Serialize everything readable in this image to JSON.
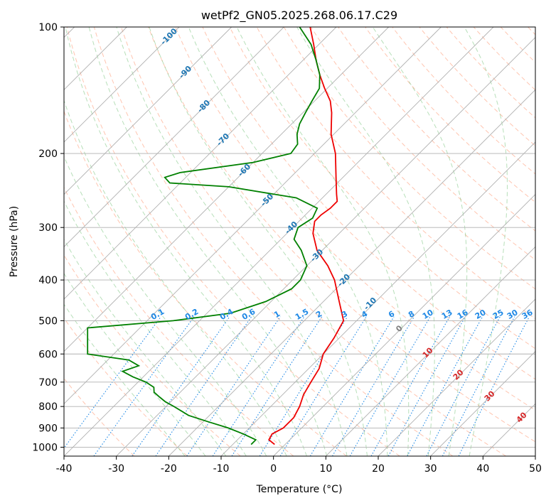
{
  "chart_data": {
    "type": "skew-t",
    "title": "wetPf2_GN05.2025.268.06.17.C29",
    "xlabel": "Temperature (°C)",
    "ylabel": "Pressure (hPa)",
    "xlim": [
      -40,
      50
    ],
    "ylim": [
      1050,
      100
    ],
    "y_scale": "log",
    "x_ticks": [
      -40,
      -30,
      -20,
      -10,
      0,
      10,
      20,
      30,
      40,
      50
    ],
    "y_ticks": [
      100,
      200,
      300,
      400,
      500,
      600,
      700,
      800,
      900,
      1000
    ],
    "grid": true,
    "isotherm_labels": [
      -100,
      -90,
      -80,
      -70,
      -60,
      -50,
      -40,
      -30,
      -20,
      -10,
      0,
      10,
      20,
      30,
      40
    ],
    "mixing_ratio_labels": [
      "0.1",
      "0.2",
      "0.4",
      "0.6",
      "1",
      "1.5",
      "2",
      "3",
      "4",
      "6",
      "8",
      "10",
      "13",
      "16",
      "20",
      "25",
      "30",
      "36"
    ],
    "colors": {
      "temperature": "#ee0000",
      "dewpoint": "#008000",
      "isotherm_label": "#1f77b4",
      "isotherm_label_warm": "#d62728",
      "isotherm_label_zero": "#808080",
      "mixing_ratio": "#1e88e5",
      "dry_adiabat": "#ff7f50",
      "moist_adiabat": "#4caf50",
      "grid": "#b0b0b0"
    },
    "series": [
      {
        "points": [
          {
            "p": 985,
            "t": -2.0
          },
          {
            "p": 960,
            "t": -4.0
          },
          {
            "p": 930,
            "t": -4.5
          },
          {
            "p": 900,
            "t": -3.5
          },
          {
            "p": 850,
            "t": -3.5
          },
          {
            "p": 800,
            "t": -4.5
          },
          {
            "p": 750,
            "t": -6.0
          },
          {
            "p": 700,
            "t": -7.0
          },
          {
            "p": 650,
            "t": -8.0
          },
          {
            "p": 600,
            "t": -10.0
          },
          {
            "p": 550,
            "t": -11.0
          },
          {
            "p": 500,
            "t": -12.5
          },
          {
            "p": 450,
            "t": -17.0
          },
          {
            "p": 400,
            "t": -22.0
          },
          {
            "p": 370,
            "t": -26.0
          },
          {
            "p": 340,
            "t": -31.0
          },
          {
            "p": 310,
            "t": -35.0
          },
          {
            "p": 290,
            "t": -37.0
          },
          {
            "p": 280,
            "t": -37.0
          },
          {
            "p": 270,
            "t": -36.5
          },
          {
            "p": 260,
            "t": -36.5
          },
          {
            "p": 250,
            "t": -38.0
          },
          {
            "p": 230,
            "t": -41.0
          },
          {
            "p": 200,
            "t": -46.0
          },
          {
            "p": 180,
            "t": -50.5
          },
          {
            "p": 160,
            "t": -54.5
          },
          {
            "p": 150,
            "t": -57.0
          },
          {
            "p": 140,
            "t": -60.5
          },
          {
            "p": 130,
            "t": -64.0
          },
          {
            "p": 120,
            "t": -67.5
          },
          {
            "p": 110,
            "t": -71.0
          },
          {
            "p": 100,
            "t": -75.0
          }
        ]
      },
      {
        "points": [
          {
            "p": 985,
            "t": -6.5
          },
          {
            "p": 960,
            "t": -6.5
          },
          {
            "p": 930,
            "t": -10.0
          },
          {
            "p": 900,
            "t": -14.0
          },
          {
            "p": 870,
            "t": -19.0
          },
          {
            "p": 840,
            "t": -24.0
          },
          {
            "p": 800,
            "t": -28.5
          },
          {
            "p": 780,
            "t": -31.0
          },
          {
            "p": 760,
            "t": -33.0
          },
          {
            "p": 740,
            "t": -35.0
          },
          {
            "p": 720,
            "t": -36.0
          },
          {
            "p": 700,
            "t": -38.5
          },
          {
            "p": 680,
            "t": -42.0
          },
          {
            "p": 660,
            "t": -45.0
          },
          {
            "p": 640,
            "t": -43.0
          },
          {
            "p": 620,
            "t": -46.0
          },
          {
            "p": 600,
            "t": -55.0
          },
          {
            "p": 520,
            "t": -60.0
          },
          {
            "p": 500,
            "t": -45.0
          },
          {
            "p": 480,
            "t": -35.5
          },
          {
            "p": 450,
            "t": -31.0
          },
          {
            "p": 420,
            "t": -28.5
          },
          {
            "p": 400,
            "t": -28.5
          },
          {
            "p": 370,
            "t": -30.0
          },
          {
            "p": 340,
            "t": -34.0
          },
          {
            "p": 320,
            "t": -37.5
          },
          {
            "p": 300,
            "t": -39.0
          },
          {
            "p": 285,
            "t": -38.0
          },
          {
            "p": 270,
            "t": -39.0
          },
          {
            "p": 255,
            "t": -45.0
          },
          {
            "p": 240,
            "t": -60.0
          },
          {
            "p": 235,
            "t": -72.0
          },
          {
            "p": 228,
            "t": -74.0
          },
          {
            "p": 222,
            "t": -72.0
          },
          {
            "p": 210,
            "t": -60.0
          },
          {
            "p": 200,
            "t": -54.5
          },
          {
            "p": 190,
            "t": -55.0
          },
          {
            "p": 180,
            "t": -57.0
          },
          {
            "p": 170,
            "t": -58.5
          },
          {
            "p": 160,
            "t": -59.5
          },
          {
            "p": 150,
            "t": -60.5
          },
          {
            "p": 140,
            "t": -61.5
          },
          {
            "p": 130,
            "t": -64.0
          },
          {
            "p": 120,
            "t": -67.5
          },
          {
            "p": 110,
            "t": -71.5
          },
          {
            "p": 100,
            "t": -77.0
          }
        ]
      }
    ]
  }
}
